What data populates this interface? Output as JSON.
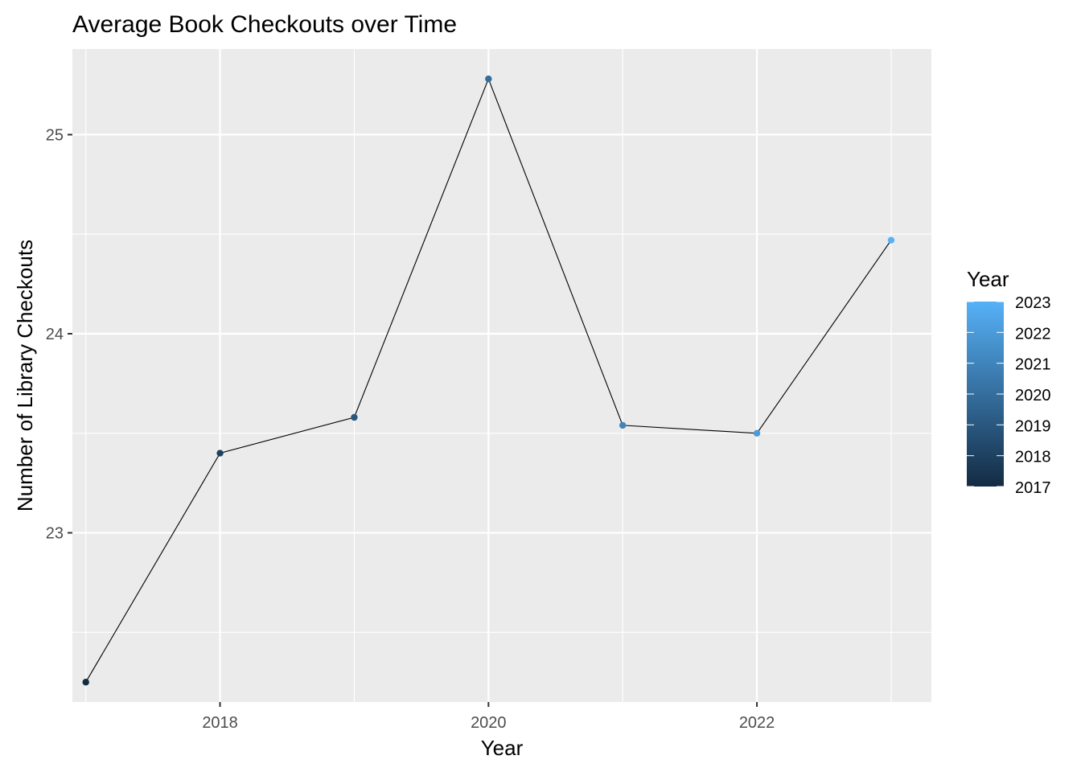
{
  "chart_data": {
    "type": "line",
    "title": "Average Book Checkouts over Time",
    "xlabel": "Year",
    "ylabel": "Number of Library Checkouts",
    "x": [
      2017,
      2018,
      2019,
      2020,
      2021,
      2022,
      2023
    ],
    "series": [
      {
        "values": [
          22.25,
          23.4,
          23.58,
          25.28,
          23.54,
          23.5,
          24.47
        ]
      }
    ],
    "xlim": [
      2016.9,
      2023.3
    ],
    "ylim": [
      22.15,
      25.43
    ],
    "x_ticks": [
      2018,
      2020,
      2022
    ],
    "x_tick_labels": [
      "2018",
      "2020",
      "2022"
    ],
    "y_ticks": [
      23,
      24,
      25
    ],
    "y_tick_labels": [
      "23",
      "24",
      "25"
    ],
    "grid": true,
    "background": "#ebebeb",
    "line_color": "#000000",
    "color_scale": {
      "low": "#132b43",
      "high": "#56b1f7",
      "min": 2017,
      "max": 2023
    },
    "legend": {
      "title": "Year",
      "position": "right",
      "labels": [
        "2023",
        "2022",
        "2021",
        "2020",
        "2019",
        "2018",
        "2017"
      ]
    }
  }
}
